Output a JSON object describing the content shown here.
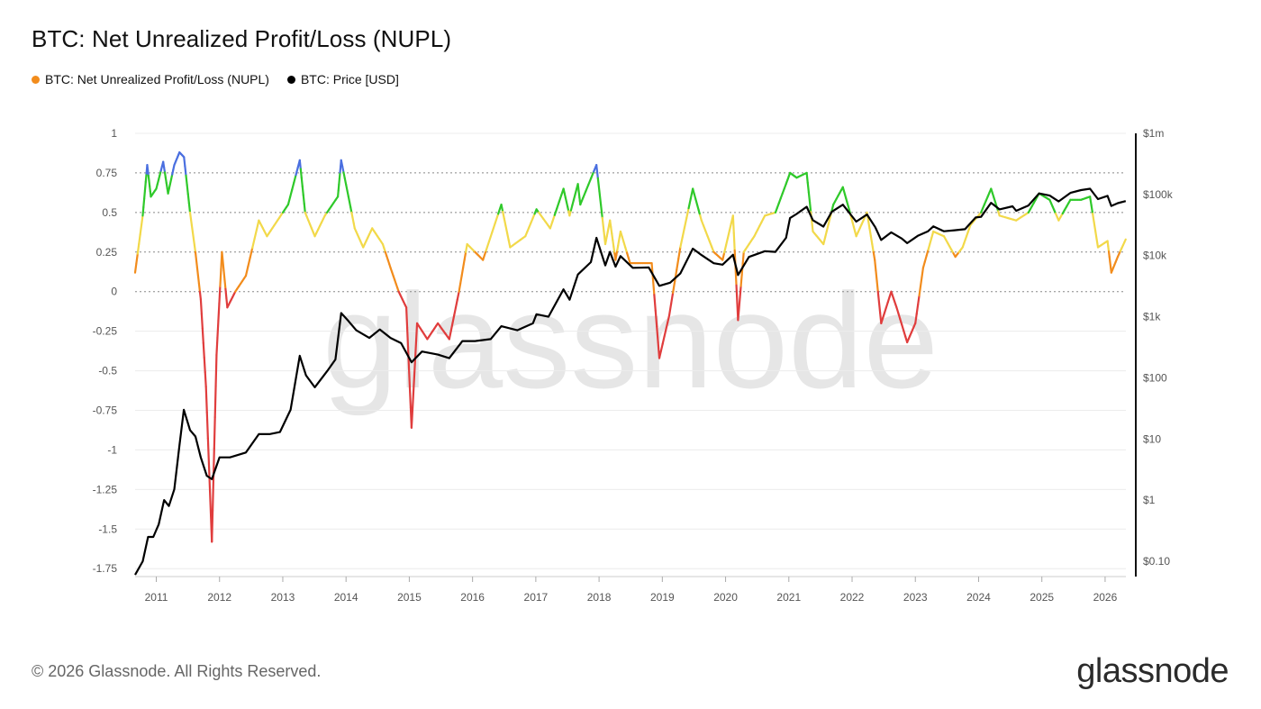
{
  "title": "BTC: Net Unrealized Profit/Loss (NUPL)",
  "legend": [
    {
      "label": "BTC: Net Unrealized Profit/Loss (NUPL)",
      "color": "#f7931a"
    },
    {
      "label": "BTC: Price [USD]",
      "color": "#000000"
    }
  ],
  "watermark": "glassnode",
  "footer": "© 2026 Glassnode. All Rights Reserved.",
  "brand": "glassnode",
  "colors": {
    "blue": "#4a6fe0",
    "green": "#2fc92a",
    "yellow": "#f2d94a",
    "orange": "#f28c1c",
    "red": "#e03d3d",
    "price": "#000000"
  },
  "chart_data": {
    "type": "line",
    "x_ticks": [
      "2011",
      "2012",
      "2013",
      "2014",
      "2015",
      "2016",
      "2017",
      "2018",
      "2019",
      "2020",
      "2021",
      "2022",
      "2023",
      "2024",
      "2025",
      "2026"
    ],
    "y_left_ticks": [
      "1",
      "0.75",
      "0.5",
      "0.25",
      "0",
      "-0.25",
      "-0.5",
      "-0.75",
      "-1",
      "-1.25",
      "-1.5",
      "-1.75"
    ],
    "y_left_range": [
      -1.8,
      1
    ],
    "y_right_ticks": [
      "$1m",
      "$100k",
      "$10k",
      "$1k",
      "$100",
      "$10",
      "$1",
      "$0.10"
    ],
    "y_right_scale": "log",
    "x_range": [
      "2010-09",
      "2026-05"
    ],
    "grid": "horizontal",
    "nupl_color_bands": [
      {
        "min": 0.75,
        "color": "blue"
      },
      {
        "min": 0.5,
        "color": "green"
      },
      {
        "min": 0.25,
        "color": "yellow"
      },
      {
        "min": 0,
        "color": "orange"
      },
      {
        "min": -10,
        "color": "red"
      }
    ],
    "series": [
      {
        "name": "BTC: Net Unrealized Profit/Loss (NUPL)",
        "points": [
          [
            "2010-09-01",
            0.12
          ],
          [
            "2010-10-15",
            0.48
          ],
          [
            "2010-11-10",
            0.8
          ],
          [
            "2010-12-01",
            0.6
          ],
          [
            "2011-01-01",
            0.65
          ],
          [
            "2011-02-10",
            0.82
          ],
          [
            "2011-03-10",
            0.62
          ],
          [
            "2011-04-15",
            0.8
          ],
          [
            "2011-05-15",
            0.88
          ],
          [
            "2011-06-10",
            0.85
          ],
          [
            "2011-07-15",
            0.5
          ],
          [
            "2011-08-15",
            0.25
          ],
          [
            "2011-09-15",
            -0.05
          ],
          [
            "2011-10-15",
            -0.6
          ],
          [
            "2011-11-18",
            -1.58
          ],
          [
            "2011-12-15",
            -0.4
          ],
          [
            "2012-01-15",
            0.25
          ],
          [
            "2012-02-15",
            -0.1
          ],
          [
            "2012-04-01",
            0.0
          ],
          [
            "2012-06-01",
            0.1
          ],
          [
            "2012-08-15",
            0.45
          ],
          [
            "2012-10-01",
            0.35
          ],
          [
            "2012-12-01",
            0.45
          ],
          [
            "2013-02-01",
            0.55
          ],
          [
            "2013-04-09",
            0.83
          ],
          [
            "2013-05-10",
            0.5
          ],
          [
            "2013-07-05",
            0.35
          ],
          [
            "2013-09-01",
            0.48
          ],
          [
            "2013-11-15",
            0.6
          ],
          [
            "2013-12-04",
            0.83
          ],
          [
            "2014-01-15",
            0.6
          ],
          [
            "2014-02-20",
            0.4
          ],
          [
            "2014-04-10",
            0.28
          ],
          [
            "2014-06-01",
            0.4
          ],
          [
            "2014-08-01",
            0.3
          ],
          [
            "2014-09-15",
            0.15
          ],
          [
            "2014-11-01",
            0.0
          ],
          [
            "2014-12-15",
            -0.1
          ],
          [
            "2015-01-14",
            -0.86
          ],
          [
            "2015-02-15",
            -0.2
          ],
          [
            "2015-04-15",
            -0.3
          ],
          [
            "2015-06-15",
            -0.2
          ],
          [
            "2015-08-20",
            -0.3
          ],
          [
            "2015-10-15",
            0.0
          ],
          [
            "2015-12-01",
            0.3
          ],
          [
            "2016-03-01",
            0.2
          ],
          [
            "2016-06-15",
            0.55
          ],
          [
            "2016-08-05",
            0.28
          ],
          [
            "2016-11-01",
            0.35
          ],
          [
            "2017-01-05",
            0.52
          ],
          [
            "2017-03-25",
            0.4
          ],
          [
            "2017-06-10",
            0.65
          ],
          [
            "2017-07-15",
            0.48
          ],
          [
            "2017-09-01",
            0.68
          ],
          [
            "2017-09-15",
            0.55
          ],
          [
            "2017-12-17",
            0.8
          ],
          [
            "2018-02-06",
            0.3
          ],
          [
            "2018-03-05",
            0.45
          ],
          [
            "2018-04-06",
            0.2
          ],
          [
            "2018-05-05",
            0.38
          ],
          [
            "2018-06-29",
            0.18
          ],
          [
            "2018-08-15",
            0.18
          ],
          [
            "2018-11-01",
            0.18
          ],
          [
            "2018-12-15",
            -0.42
          ],
          [
            "2019-02-10",
            -0.15
          ],
          [
            "2019-04-15",
            0.28
          ],
          [
            "2019-06-26",
            0.65
          ],
          [
            "2019-08-15",
            0.45
          ],
          [
            "2019-10-25",
            0.25
          ],
          [
            "2019-12-15",
            0.2
          ],
          [
            "2020-02-13",
            0.48
          ],
          [
            "2020-03-13",
            -0.18
          ],
          [
            "2020-04-15",
            0.25
          ],
          [
            "2020-06-15",
            0.35
          ],
          [
            "2020-08-15",
            0.48
          ],
          [
            "2020-10-15",
            0.5
          ],
          [
            "2020-12-15",
            0.68
          ],
          [
            "2021-01-08",
            0.75
          ],
          [
            "2021-02-15",
            0.72
          ],
          [
            "2021-04-14",
            0.75
          ],
          [
            "2021-05-20",
            0.38
          ],
          [
            "2021-07-20",
            0.3
          ],
          [
            "2021-09-15",
            0.55
          ],
          [
            "2021-11-09",
            0.66
          ],
          [
            "2021-12-15",
            0.52
          ],
          [
            "2022-01-25",
            0.35
          ],
          [
            "2022-03-28",
            0.5
          ],
          [
            "2022-05-12",
            0.2
          ],
          [
            "2022-06-18",
            -0.2
          ],
          [
            "2022-08-15",
            0.0
          ],
          [
            "2022-09-15",
            -0.1
          ],
          [
            "2022-11-15",
            -0.32
          ],
          [
            "2023-01-01",
            -0.2
          ],
          [
            "2023-02-15",
            0.15
          ],
          [
            "2023-04-15",
            0.38
          ],
          [
            "2023-06-15",
            0.35
          ],
          [
            "2023-08-20",
            0.22
          ],
          [
            "2023-10-01",
            0.28
          ],
          [
            "2023-11-15",
            0.42
          ],
          [
            "2024-01-15",
            0.5
          ],
          [
            "2024-03-13",
            0.65
          ],
          [
            "2024-05-01",
            0.48
          ],
          [
            "2024-08-05",
            0.45
          ],
          [
            "2024-10-15",
            0.5
          ],
          [
            "2024-12-15",
            0.62
          ],
          [
            "2025-02-15",
            0.58
          ],
          [
            "2025-04-08",
            0.45
          ],
          [
            "2025-06-15",
            0.58
          ],
          [
            "2025-08-15",
            0.58
          ],
          [
            "2025-10-06",
            0.6
          ],
          [
            "2025-11-21",
            0.28
          ],
          [
            "2026-01-15",
            0.32
          ],
          [
            "2026-02-06",
            0.12
          ],
          [
            "2026-03-15",
            0.22
          ],
          [
            "2026-04-30",
            0.33
          ]
        ]
      },
      {
        "name": "BTC: Price [USD]",
        "points": [
          [
            "2010-09-01",
            0.06
          ],
          [
            "2010-10-15",
            0.1
          ],
          [
            "2010-11-15",
            0.25
          ],
          [
            "2010-12-15",
            0.25
          ],
          [
            "2011-01-15",
            0.4
          ],
          [
            "2011-02-15",
            1.0
          ],
          [
            "2011-03-15",
            0.8
          ],
          [
            "2011-04-15",
            1.5
          ],
          [
            "2011-05-15",
            8.0
          ],
          [
            "2011-06-09",
            30
          ],
          [
            "2011-07-15",
            14
          ],
          [
            "2011-08-15",
            11
          ],
          [
            "2011-09-15",
            5
          ],
          [
            "2011-10-20",
            2.5
          ],
          [
            "2011-11-18",
            2.2
          ],
          [
            "2012-01-01",
            5
          ],
          [
            "2012-03-01",
            5
          ],
          [
            "2012-06-01",
            6
          ],
          [
            "2012-08-15",
            12
          ],
          [
            "2012-10-15",
            12
          ],
          [
            "2012-12-15",
            13
          ],
          [
            "2013-02-15",
            30
          ],
          [
            "2013-04-09",
            230
          ],
          [
            "2013-05-15",
            110
          ],
          [
            "2013-07-05",
            70
          ],
          [
            "2013-09-15",
            130
          ],
          [
            "2013-11-01",
            200
          ],
          [
            "2013-12-04",
            1150
          ],
          [
            "2014-01-15",
            850
          ],
          [
            "2014-03-01",
            600
          ],
          [
            "2014-05-15",
            450
          ],
          [
            "2014-07-15",
            620
          ],
          [
            "2014-09-15",
            450
          ],
          [
            "2014-11-15",
            370
          ],
          [
            "2015-01-14",
            180
          ],
          [
            "2015-03-15",
            270
          ],
          [
            "2015-06-15",
            240
          ],
          [
            "2015-08-20",
            210
          ],
          [
            "2015-11-04",
            400
          ],
          [
            "2016-01-15",
            400
          ],
          [
            "2016-04-15",
            430
          ],
          [
            "2016-06-15",
            700
          ],
          [
            "2016-09-15",
            600
          ],
          [
            "2016-12-15",
            780
          ],
          [
            "2017-01-05",
            1100
          ],
          [
            "2017-03-15",
            1000
          ],
          [
            "2017-06-10",
            2800
          ],
          [
            "2017-07-15",
            1900
          ],
          [
            "2017-09-01",
            4900
          ],
          [
            "2017-11-15",
            7800
          ],
          [
            "2017-12-17",
            19500
          ],
          [
            "2018-02-06",
            6900
          ],
          [
            "2018-03-05",
            11500
          ],
          [
            "2018-04-06",
            6600
          ],
          [
            "2018-05-05",
            9800
          ],
          [
            "2018-07-15",
            6300
          ],
          [
            "2018-10-15",
            6400
          ],
          [
            "2018-12-15",
            3200
          ],
          [
            "2019-02-15",
            3600
          ],
          [
            "2019-04-15",
            5100
          ],
          [
            "2019-06-26",
            13000
          ],
          [
            "2019-08-15",
            10200
          ],
          [
            "2019-10-25",
            7500
          ],
          [
            "2019-12-15",
            7100
          ],
          [
            "2020-02-13",
            10300
          ],
          [
            "2020-03-13",
            4800
          ],
          [
            "2020-05-15",
            9500
          ],
          [
            "2020-08-15",
            11800
          ],
          [
            "2020-10-15",
            11500
          ],
          [
            "2020-12-15",
            19500
          ],
          [
            "2021-01-08",
            41000
          ],
          [
            "2021-02-15",
            48000
          ],
          [
            "2021-04-14",
            63000
          ],
          [
            "2021-05-20",
            38000
          ],
          [
            "2021-07-20",
            29800
          ],
          [
            "2021-09-06",
            52000
          ],
          [
            "2021-11-09",
            68000
          ],
          [
            "2022-01-25",
            36000
          ],
          [
            "2022-03-28",
            47000
          ],
          [
            "2022-05-15",
            29000
          ],
          [
            "2022-06-18",
            18000
          ],
          [
            "2022-08-15",
            24000
          ],
          [
            "2022-10-15",
            19000
          ],
          [
            "2022-11-15",
            16000
          ],
          [
            "2023-01-15",
            21000
          ],
          [
            "2023-03-15",
            25000
          ],
          [
            "2023-04-15",
            30000
          ],
          [
            "2023-06-15",
            25000
          ],
          [
            "2023-08-15",
            26000
          ],
          [
            "2023-10-15",
            27000
          ],
          [
            "2023-12-15",
            42000
          ],
          [
            "2024-01-15",
            43000
          ],
          [
            "2024-03-13",
            73000
          ],
          [
            "2024-05-01",
            57000
          ],
          [
            "2024-07-15",
            64000
          ],
          [
            "2024-08-05",
            54000
          ],
          [
            "2024-10-15",
            66000
          ],
          [
            "2024-12-15",
            104000
          ],
          [
            "2025-02-15",
            96000
          ],
          [
            "2025-04-08",
            77000
          ],
          [
            "2025-06-15",
            106000
          ],
          [
            "2025-08-15",
            118000
          ],
          [
            "2025-10-06",
            124000
          ],
          [
            "2025-11-21",
            84000
          ],
          [
            "2026-01-15",
            95000
          ],
          [
            "2026-02-06",
            65000
          ],
          [
            "2026-03-15",
            72000
          ],
          [
            "2026-04-30",
            78000
          ]
        ]
      }
    ]
  }
}
